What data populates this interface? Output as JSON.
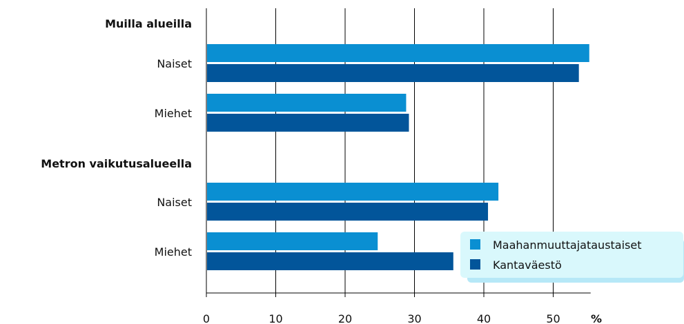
{
  "chart_data": {
    "type": "bar",
    "orientation": "horizontal",
    "xlim": [
      0,
      55
    ],
    "xticks": [
      "0",
      "10",
      "20",
      "30",
      "40",
      "50"
    ],
    "unit_label": "%",
    "grid": true,
    "legend_position": "bottom-right",
    "groups": [
      {
        "label": "Muilla alueilla",
        "categories": [
          {
            "label": "Naiset",
            "values": [
              55.2,
              53.7
            ]
          },
          {
            "label": "Miehet",
            "values": [
              28.8,
              29.2
            ]
          }
        ]
      },
      {
        "label": "Metron vaikutusalueella",
        "categories": [
          {
            "label": "Naiset",
            "values": [
              42.1,
              40.6
            ]
          },
          {
            "label": "Miehet",
            "values": [
              24.7,
              35.6
            ]
          }
        ]
      }
    ],
    "series": [
      {
        "name": "Maahanmuuttajataustaiset",
        "color": "#0a8fd2"
      },
      {
        "name": "Kantaväestö",
        "color": "#02559a"
      }
    ],
    "legend_bg": "#d9f8fc",
    "legend_shadow": "#b6e8f7"
  }
}
